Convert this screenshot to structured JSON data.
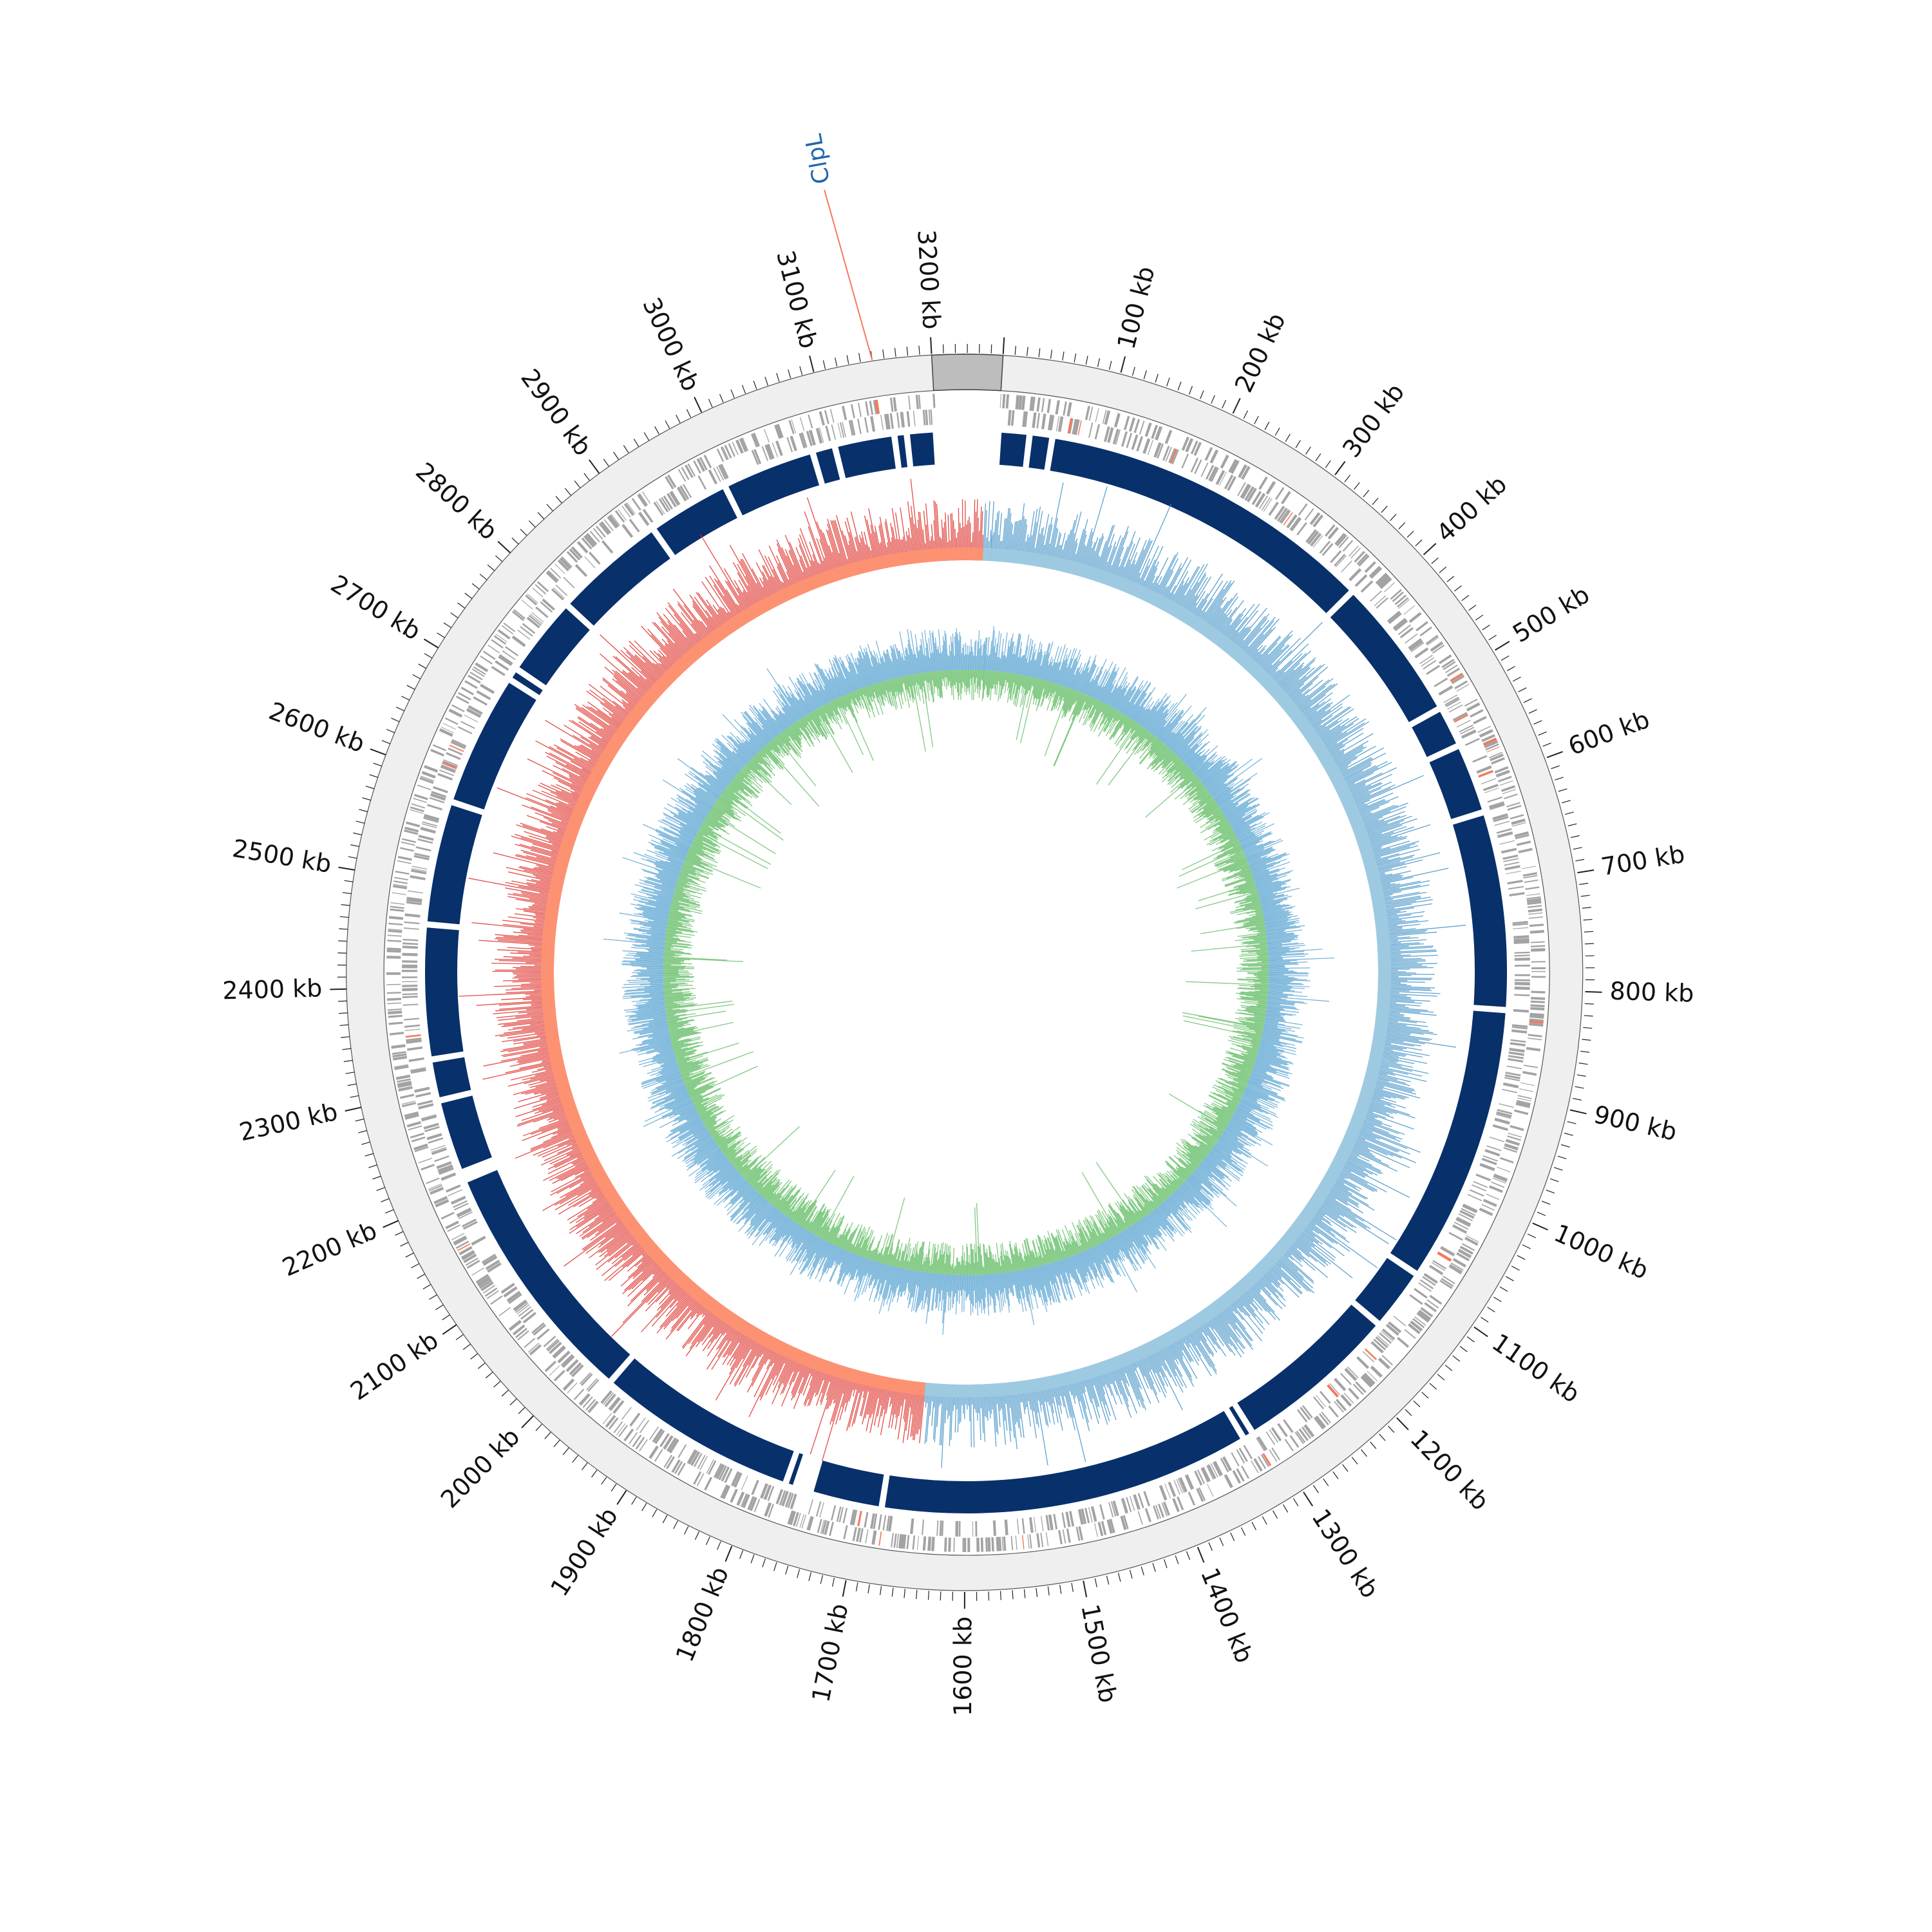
{
  "genome": {
    "length_kb": 3260,
    "gap_start_kb": 3200,
    "gap_end_kb": 3260,
    "tick_interval_kb": 100,
    "minor_tick_interval_kb": 10,
    "tick_unit": "kb"
  },
  "tick_labels": [
    "100 kb",
    "200 kb",
    "300 kb",
    "400 kb",
    "500 kb",
    "600 kb",
    "700 kb",
    "800 kb",
    "900 kb",
    "1000 kb",
    "1100 kb",
    "1200 kb",
    "1300 kb",
    "1400 kb",
    "1500 kb",
    "1600 kb",
    "1700 kb",
    "1800 kb",
    "1900 kb",
    "2000 kb",
    "2100 kb",
    "2200 kb",
    "2300 kb",
    "2400 kb",
    "2500 kb",
    "2600 kb",
    "2700 kb",
    "2800 kb",
    "2900 kb",
    "3000 kb",
    "3100 kb",
    "3200 kb"
  ],
  "annotations": [
    {
      "label": "ClpL",
      "position_kb": 3150,
      "color": "#2166ac"
    }
  ],
  "colors": {
    "outer_ring": "#efefef",
    "gap_block": "#bdbdbd",
    "genes": "#a3a3a3",
    "genes_highlight": "#f4795b",
    "blocks": "#08306b",
    "gc_skew_positive": "#9ecae1",
    "gc_skew_positive_line": "#4292c6",
    "gc_skew_negative": "#fc9272",
    "gc_skew_negative_line": "#de2d26",
    "gc_content_outer": "#6baed6",
    "gc_content_inner": "#74c476",
    "annotation_line": "#f4795b"
  },
  "tracks": {
    "block_gaps_kb": [
      30,
      52,
      380,
      520,
      560,
      628,
      820,
      1090,
      1150,
      1310,
      1320,
      1680,
      1750,
      1757,
      1765,
      1775,
      1970,
      2210,
      2218,
      2290,
      2330,
      2460,
      2580,
      2710,
      2722,
      2800,
      2910,
      2990,
      3080,
      3102,
      3160,
      3172
    ],
    "skew_switch_kb": [
      1650,
      3250
    ]
  }
}
